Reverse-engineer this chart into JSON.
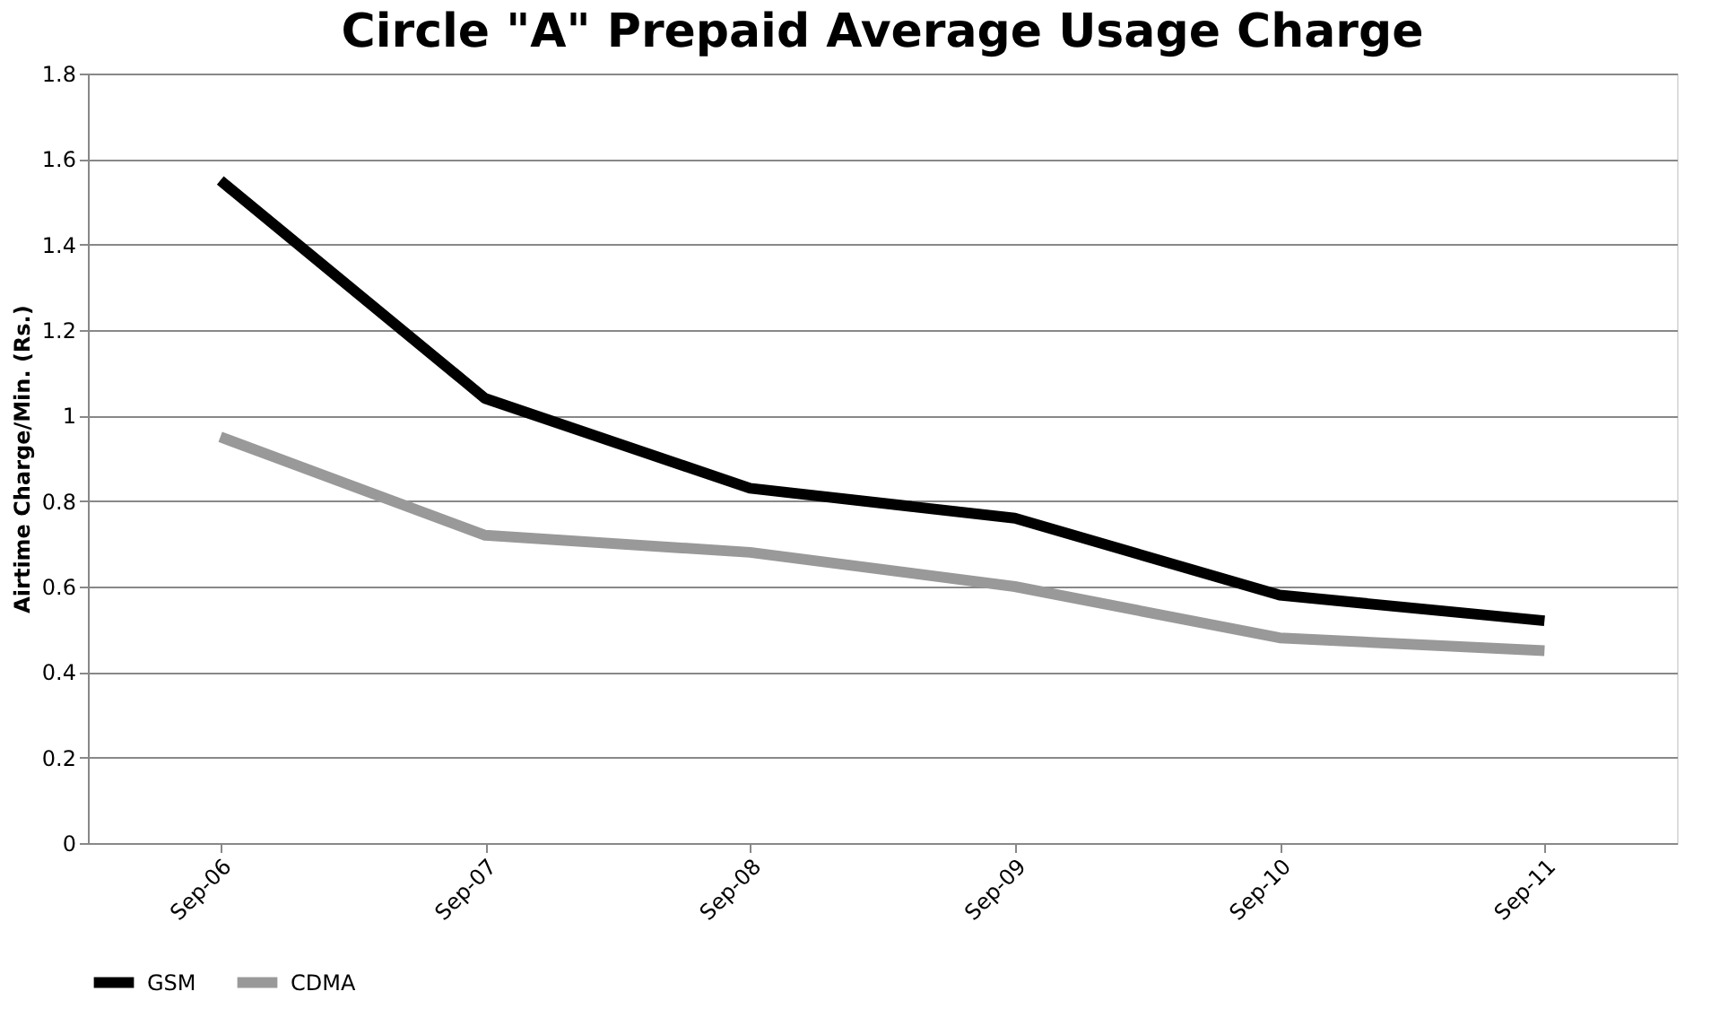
{
  "chart_data": {
    "type": "line",
    "title": "Circle \"A\" Prepaid Average Usage Charge",
    "ylabel": "Airtime Charge/Min. (Rs.)",
    "categories": [
      "Sep-06",
      "Sep-07",
      "Sep-08",
      "Sep-09",
      "Sep-10",
      "Sep-11"
    ],
    "series": [
      {
        "name": "GSM",
        "color": "#000000",
        "values": [
          1.55,
          1.04,
          0.83,
          0.76,
          0.58,
          0.52
        ]
      },
      {
        "name": "CDMA",
        "color": "#999999",
        "values": [
          0.95,
          0.72,
          0.68,
          0.6,
          0.48,
          0.45
        ]
      }
    ],
    "ylim": [
      0,
      1.8
    ],
    "yticks": [
      0,
      0.2,
      0.4,
      0.6,
      0.8,
      1,
      1.2,
      1.4,
      1.6,
      1.8
    ],
    "grid": "y",
    "legend": "bottom",
    "marker": "none",
    "line_style": "solid"
  }
}
